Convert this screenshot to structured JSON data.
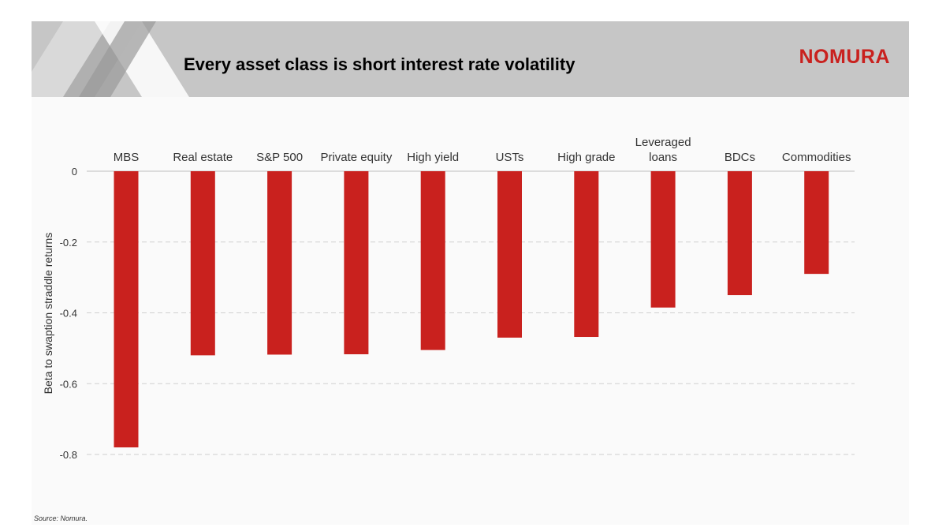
{
  "slide": {
    "title": "Every asset class is short interest rate volatility",
    "brand": "NOMURA",
    "source": "Source: Nomura."
  },
  "colors": {
    "bar": "#c9211e",
    "header_bg": "#c6c6c6",
    "brand": "#c9211e"
  },
  "chart_data": {
    "type": "bar",
    "categories": [
      [
        "MBS"
      ],
      [
        "Real estate"
      ],
      [
        "S&P 500"
      ],
      [
        "Private equity"
      ],
      [
        "High yield"
      ],
      [
        "USTs"
      ],
      [
        "High grade"
      ],
      [
        "Leveraged",
        "loans"
      ],
      [
        "BDCs"
      ],
      [
        "Commodities"
      ]
    ],
    "values": [
      -0.78,
      -0.52,
      -0.518,
      -0.517,
      -0.505,
      -0.47,
      -0.468,
      -0.385,
      -0.35,
      -0.29
    ],
    "title": "",
    "xlabel": "",
    "ylabel": "Beta to swaption straddle returns",
    "ylim": [
      -0.8,
      0
    ],
    "yticks": [
      "0",
      "-0.2",
      "-0.4",
      "-0.6",
      "-0.8"
    ],
    "grid": true,
    "legend": "none",
    "category_axis_position": "top"
  }
}
